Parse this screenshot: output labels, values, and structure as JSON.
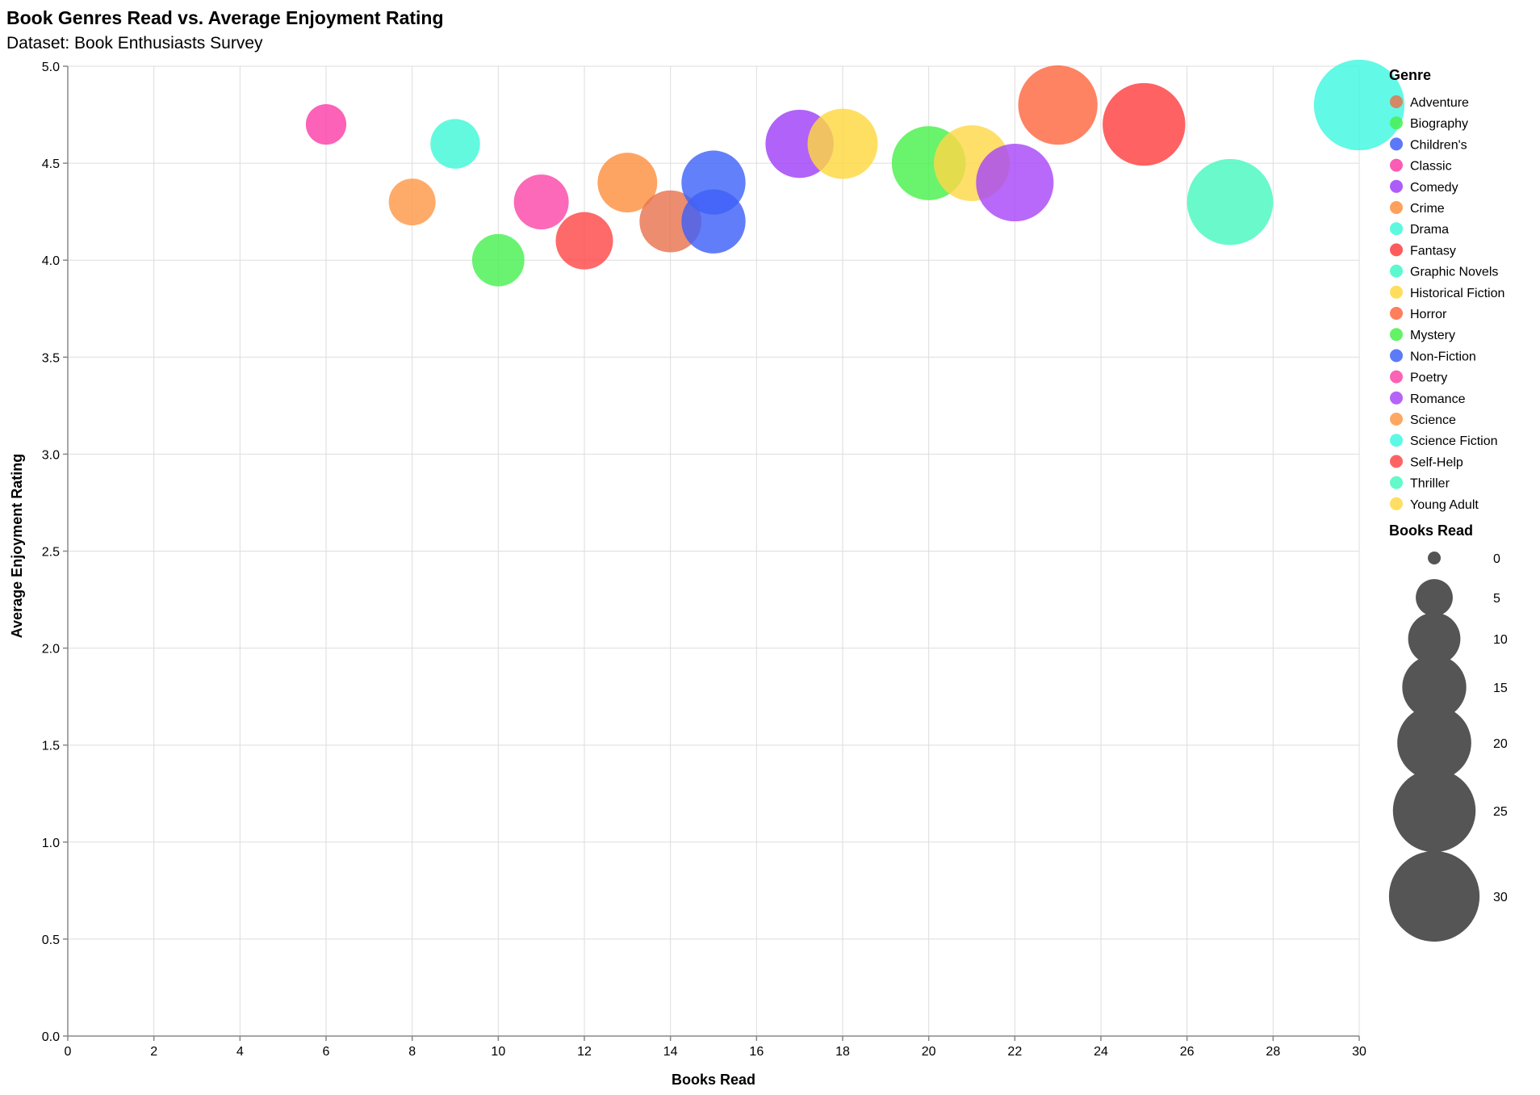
{
  "chart_data": {
    "type": "scatter",
    "title": "Book Genres Read vs. Average Enjoyment Rating",
    "subtitle": "Dataset: Book Enthusiasts Survey",
    "xlabel": "Books Read",
    "ylabel": "Average Enjoyment Rating",
    "xlim": [
      0,
      30
    ],
    "ylim": [
      0,
      5
    ],
    "x_ticks": [
      0,
      2,
      4,
      6,
      8,
      10,
      12,
      14,
      16,
      18,
      20,
      22,
      24,
      26,
      28,
      30
    ],
    "y_ticks": [
      0.0,
      0.5,
      1.0,
      1.5,
      2.0,
      2.5,
      3.0,
      3.5,
      4.0,
      4.5,
      5.0
    ],
    "y_tick_labels": [
      "0.0",
      "0.5",
      "1.0",
      "1.5",
      "2.0",
      "2.5",
      "3.0",
      "3.5",
      "4.0",
      "4.5",
      "5.0"
    ],
    "grid": true,
    "legend_placement": "right",
    "color_legend_title": "Genre",
    "size_legend_title": "Books Read",
    "size_legend_values": [
      0,
      5,
      10,
      15,
      20,
      25,
      30
    ],
    "genres": [
      {
        "name": "Adventure",
        "color": "#e8744f"
      },
      {
        "name": "Biography",
        "color": "#49f052"
      },
      {
        "name": "Children's",
        "color": "#4060f8"
      },
      {
        "name": "Classic",
        "color": "#fa40a8"
      },
      {
        "name": "Comedy",
        "color": "#a040f8"
      },
      {
        "name": "Crime",
        "color": "#fe9040"
      },
      {
        "name": "Drama",
        "color": "#40f8d8"
      },
      {
        "name": "Fantasy",
        "color": "#fe4040"
      },
      {
        "name": "Graphic Novels",
        "color": "#40f8c8"
      },
      {
        "name": "Historical Fiction",
        "color": "#fed840"
      },
      {
        "name": "Horror",
        "color": "#fe6840"
      },
      {
        "name": "Mystery",
        "color": "#49f04c"
      },
      {
        "name": "Non-Fiction",
        "color": "#4064f8"
      },
      {
        "name": "Poetry",
        "color": "#fa48a8"
      },
      {
        "name": "Romance",
        "color": "#a848f8"
      },
      {
        "name": "Science",
        "color": "#fe9848"
      },
      {
        "name": "Science Fiction",
        "color": "#40f8e0"
      },
      {
        "name": "Self-Help",
        "color": "#fe4848"
      },
      {
        "name": "Thriller",
        "color": "#48f8c0"
      },
      {
        "name": "Young Adult",
        "color": "#fed848"
      }
    ],
    "points": [
      {
        "genre": "Classic",
        "x": 6,
        "y": 4.7
      },
      {
        "genre": "Science",
        "x": 8,
        "y": 4.3
      },
      {
        "genre": "Drama",
        "x": 9,
        "y": 4.6
      },
      {
        "genre": "Biography",
        "x": 10,
        "y": 4.0
      },
      {
        "genre": "Poetry",
        "x": 11,
        "y": 4.3
      },
      {
        "genre": "Self-Help",
        "x": 12,
        "y": 4.1
      },
      {
        "genre": "Crime",
        "x": 13,
        "y": 4.4
      },
      {
        "genre": "Adventure",
        "x": 14,
        "y": 4.2
      },
      {
        "genre": "Non-Fiction",
        "x": 15,
        "y": 4.4
      },
      {
        "genre": "Children's",
        "x": 15,
        "y": 4.2
      },
      {
        "genre": "Comedy",
        "x": 17,
        "y": 4.6
      },
      {
        "genre": "Historical Fiction",
        "x": 18,
        "y": 4.6
      },
      {
        "genre": "Mystery",
        "x": 20,
        "y": 4.5
      },
      {
        "genre": "Young Adult",
        "x": 21,
        "y": 4.5
      },
      {
        "genre": "Romance",
        "x": 22,
        "y": 4.4
      },
      {
        "genre": "Horror",
        "x": 23,
        "y": 4.8
      },
      {
        "genre": "Fantasy",
        "x": 25,
        "y": 4.7
      },
      {
        "genre": "Thriller",
        "x": 27,
        "y": 4.3
      },
      {
        "genre": "Science Fiction",
        "x": 30,
        "y": 4.8
      }
    ]
  }
}
